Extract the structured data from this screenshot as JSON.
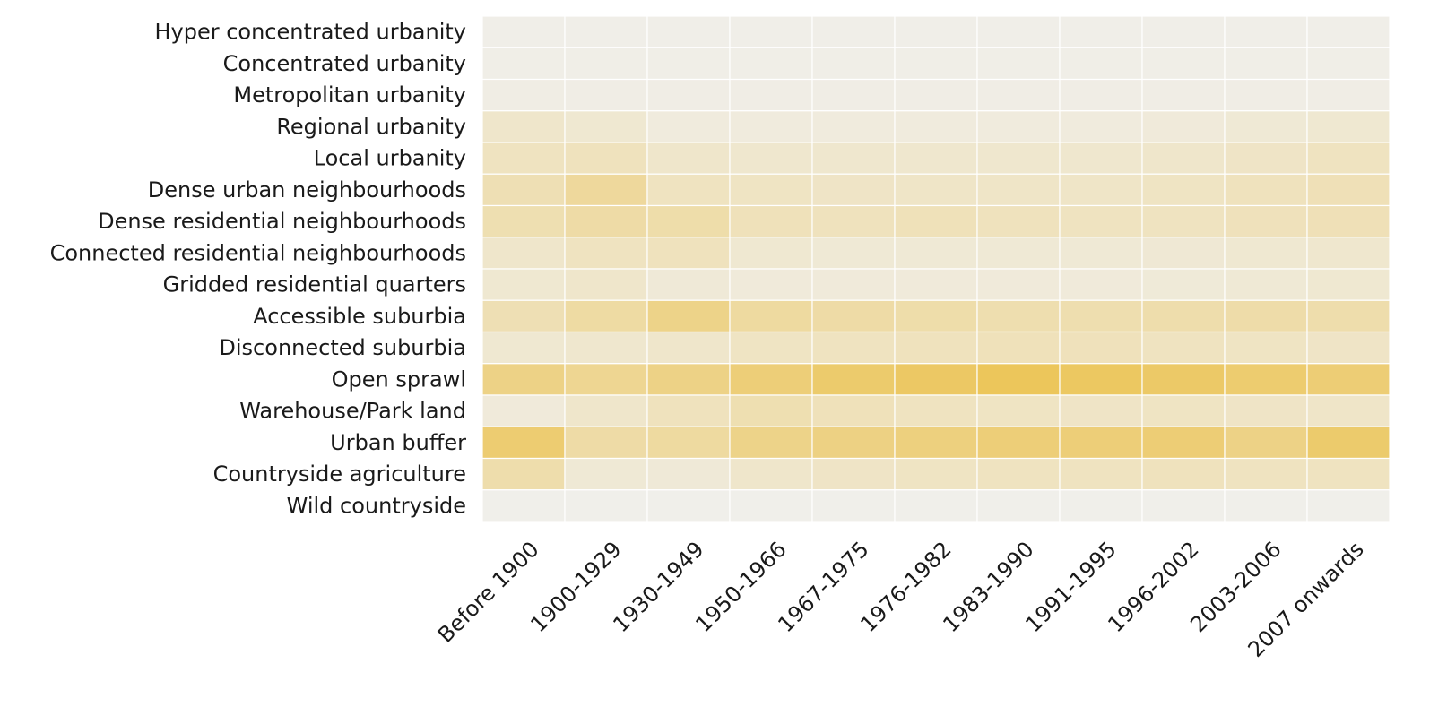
{
  "chart_data": {
    "type": "heatmap",
    "title": "",
    "xlabel": "",
    "ylabel": "",
    "colors": {
      "low": "#f0efeb",
      "high": "#ecc65b",
      "grid": "#ffffff"
    },
    "grid": true,
    "legend": "none",
    "x_categories": [
      "Before 1900",
      "1900-1929",
      "1930-1949",
      "1950-1966",
      "1967-1975",
      "1976-1982",
      "1983-1990",
      "1991-1995",
      "1996-2002",
      "2003-2006",
      "2007 onwards"
    ],
    "y_categories": [
      "Hyper concentrated urbanity",
      "Concentrated urbanity",
      "Metropolitan urbanity",
      "Regional urbanity",
      "Local urbanity",
      "Dense urban neighbourhoods",
      "Dense residential neighbourhoods",
      "Connected residential neighbourhoods",
      "Gridded residential quarters",
      "Accessible suburbia",
      "Disconnected suburbia",
      "Open sprawl",
      "Warehouse/Park land",
      "Urban buffer",
      "Countryside agriculture",
      "Wild countryside"
    ],
    "values": [
      [
        0.02,
        0.02,
        0.02,
        0.02,
        0.02,
        0.02,
        0.02,
        0.02,
        0.02,
        0.02,
        0.02
      ],
      [
        0.03,
        0.03,
        0.03,
        0.03,
        0.03,
        0.03,
        0.03,
        0.03,
        0.03,
        0.03,
        0.03
      ],
      [
        0.05,
        0.04,
        0.04,
        0.04,
        0.04,
        0.04,
        0.04,
        0.04,
        0.04,
        0.04,
        0.04
      ],
      [
        0.22,
        0.18,
        0.1,
        0.1,
        0.1,
        0.1,
        0.1,
        0.1,
        0.12,
        0.15,
        0.18
      ],
      [
        0.3,
        0.32,
        0.22,
        0.2,
        0.2,
        0.2,
        0.2,
        0.2,
        0.22,
        0.26,
        0.3
      ],
      [
        0.38,
        0.55,
        0.3,
        0.28,
        0.26,
        0.25,
        0.25,
        0.25,
        0.28,
        0.32,
        0.36
      ],
      [
        0.4,
        0.48,
        0.45,
        0.34,
        0.32,
        0.35,
        0.32,
        0.3,
        0.3,
        0.33,
        0.36
      ],
      [
        0.22,
        0.3,
        0.32,
        0.18,
        0.15,
        0.15,
        0.15,
        0.15,
        0.16,
        0.18,
        0.2
      ],
      [
        0.18,
        0.22,
        0.14,
        0.12,
        0.12,
        0.12,
        0.12,
        0.12,
        0.13,
        0.15,
        0.18
      ],
      [
        0.38,
        0.5,
        0.68,
        0.52,
        0.48,
        0.45,
        0.42,
        0.42,
        0.44,
        0.46,
        0.44
      ],
      [
        0.18,
        0.2,
        0.22,
        0.28,
        0.3,
        0.32,
        0.34,
        0.33,
        0.3,
        0.28,
        0.26
      ],
      [
        0.7,
        0.62,
        0.7,
        0.8,
        0.88,
        0.94,
        1.0,
        0.96,
        0.92,
        0.86,
        0.82
      ],
      [
        0.12,
        0.22,
        0.32,
        0.4,
        0.34,
        0.3,
        0.28,
        0.26,
        0.28,
        0.26,
        0.24
      ],
      [
        0.85,
        0.48,
        0.52,
        0.68,
        0.72,
        0.76,
        0.8,
        0.8,
        0.82,
        0.7,
        0.88
      ],
      [
        0.44,
        0.15,
        0.14,
        0.22,
        0.26,
        0.28,
        0.3,
        0.3,
        0.32,
        0.3,
        0.3
      ],
      [
        0.01,
        0.01,
        0.01,
        0.01,
        0.01,
        0.01,
        0.01,
        0.01,
        0.01,
        0.01,
        0.01
      ]
    ]
  }
}
